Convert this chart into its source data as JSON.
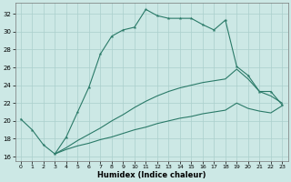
{
  "xlabel": "Humidex (Indice chaleur)",
  "xlim": [
    -0.5,
    23.5
  ],
  "ylim": [
    15.5,
    33.2
  ],
  "yticks": [
    16,
    18,
    20,
    22,
    24,
    26,
    28,
    30,
    32
  ],
  "xticks": [
    0,
    1,
    2,
    3,
    4,
    5,
    6,
    7,
    8,
    9,
    10,
    11,
    12,
    13,
    14,
    15,
    16,
    17,
    18,
    19,
    20,
    21,
    22,
    23
  ],
  "bg_color": "#cce8e5",
  "grid_color": "#aacfcc",
  "line_color": "#2a7a68",
  "line1_x": [
    0,
    1,
    2,
    3,
    4,
    5,
    6,
    7,
    8,
    9,
    10,
    11,
    12,
    13,
    14,
    15,
    16,
    17,
    18,
    19,
    20,
    21,
    22,
    23
  ],
  "line1_y": [
    20.2,
    19.0,
    17.3,
    16.3,
    18.2,
    21.0,
    23.8,
    27.5,
    29.5,
    30.2,
    30.5,
    32.5,
    31.8,
    31.5,
    31.5,
    31.5,
    30.8,
    30.2,
    31.3,
    26.1,
    25.1,
    23.3,
    23.3,
    21.8
  ],
  "line2_x": [
    3,
    4,
    5,
    6,
    7,
    8,
    9,
    10,
    11,
    12,
    13,
    14,
    15,
    16,
    17,
    18,
    19,
    20,
    21,
    22,
    23
  ],
  "line2_y": [
    16.3,
    17.0,
    17.8,
    18.5,
    19.2,
    20.0,
    20.7,
    21.5,
    22.2,
    22.8,
    23.3,
    23.7,
    24.0,
    24.3,
    24.5,
    24.7,
    25.8,
    24.7,
    23.3,
    22.8,
    22.0
  ],
  "line3_x": [
    3,
    4,
    5,
    6,
    7,
    8,
    9,
    10,
    11,
    12,
    13,
    14,
    15,
    16,
    17,
    18,
    19,
    20,
    21,
    22,
    23
  ],
  "line3_y": [
    16.3,
    16.8,
    17.2,
    17.5,
    17.9,
    18.2,
    18.6,
    19.0,
    19.3,
    19.7,
    20.0,
    20.3,
    20.5,
    20.8,
    21.0,
    21.2,
    22.0,
    21.4,
    21.1,
    20.9,
    21.7
  ]
}
